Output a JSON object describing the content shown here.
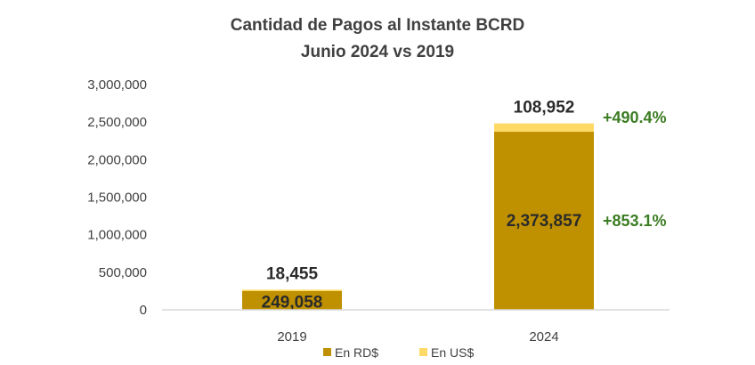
{
  "chart_data": {
    "type": "bar",
    "stacked": true,
    "title": "Cantidad de Pagos al Instante BCRD",
    "subtitle": "Junio 2024 vs 2019",
    "xlabel": "",
    "ylabel": "",
    "categories": [
      "2019",
      "2024"
    ],
    "series": [
      {
        "name": "En RD$",
        "values": [
          249058,
          2373857
        ],
        "labels": [
          "249,058",
          "2,373,857"
        ],
        "color": "#BF9000"
      },
      {
        "name": "En US$",
        "values": [
          18455,
          108952
        ],
        "labels": [
          "18,455",
          "108,952"
        ],
        "color": "#FFD966"
      }
    ],
    "ylim": [
      0,
      3000000
    ],
    "yticks": [
      0,
      500000,
      1000000,
      1500000,
      2000000,
      2500000,
      3000000
    ],
    "ytick_labels": [
      "0",
      "500,000",
      "1,000,000",
      "1,500,000",
      "2,000,000",
      "2,500,000",
      "3,000,000"
    ],
    "annotations": [
      {
        "text": "+490.4%",
        "series": "En US$",
        "category": "2024"
      },
      {
        "text": "+853.1%",
        "series": "En RD$",
        "category": "2024"
      }
    ],
    "grid": false,
    "legend": "bottom"
  }
}
